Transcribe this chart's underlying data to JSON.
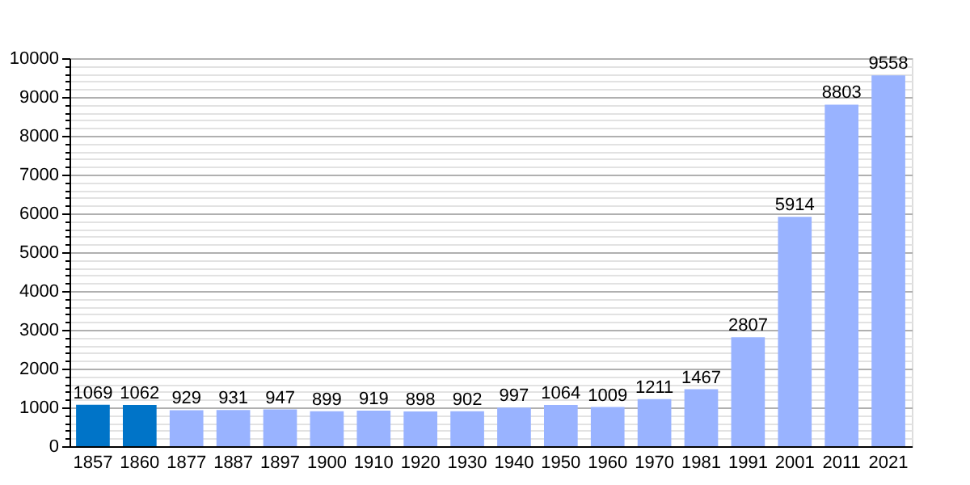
{
  "chart_data": {
    "type": "bar",
    "categories": [
      "1857",
      "1860",
      "1877",
      "1887",
      "1897",
      "1900",
      "1910",
      "1920",
      "1930",
      "1940",
      "1950",
      "1960",
      "1970",
      "1981",
      "1991",
      "2001",
      "2011",
      "2021"
    ],
    "values": [
      1069,
      1062,
      929,
      931,
      947,
      899,
      919,
      898,
      902,
      997,
      1064,
      1009,
      1211,
      1467,
      2807,
      5914,
      8803,
      9558
    ],
    "colors": [
      "#0074c8",
      "#0074c8",
      "#99b3ff",
      "#99b3ff",
      "#99b3ff",
      "#99b3ff",
      "#99b3ff",
      "#99b3ff",
      "#99b3ff",
      "#99b3ff",
      "#99b3ff",
      "#99b3ff",
      "#99b3ff",
      "#99b3ff",
      "#99b3ff",
      "#99b3ff",
      "#99b3ff",
      "#99b3ff"
    ],
    "ylim": [
      0,
      10000
    ],
    "yticks": [
      0,
      {
        "value": 200,
        "label": null
      },
      {
        "value": 400,
        "label": null
      },
      {
        "value": 600,
        "label": null
      },
      {
        "value": 800,
        "label": null
      },
      1000,
      {
        "value": 1200,
        "label": null
      },
      {
        "value": 1400,
        "label": null
      },
      {
        "value": 1600,
        "label": null
      },
      {
        "value": 1800,
        "label": null
      },
      2000,
      {
        "value": 2200,
        "label": null
      },
      {
        "value": 2400,
        "label": null
      },
      {
        "value": 2600,
        "label": null
      },
      {
        "value": 2800,
        "label": null
      },
      3000,
      {
        "value": 3200,
        "label": null
      },
      {
        "value": 3400,
        "label": null
      },
      {
        "value": 3600,
        "label": null
      },
      {
        "value": 3800,
        "label": null
      },
      4000,
      {
        "value": 4200,
        "label": null
      },
      {
        "value": 4400,
        "label": null
      },
      {
        "value": 4600,
        "label": null
      },
      {
        "value": 4800,
        "label": null
      },
      5000,
      {
        "value": 5200,
        "label": null
      },
      {
        "value": 5400,
        "label": null
      },
      {
        "value": 5600,
        "label": null
      },
      {
        "value": 5800,
        "label": null
      },
      6000,
      {
        "value": 6200,
        "label": null
      },
      {
        "value": 6400,
        "label": null
      },
      {
        "value": 6600,
        "label": null
      },
      {
        "value": 6800,
        "label": null
      },
      7000,
      {
        "value": 7200,
        "label": null
      },
      {
        "value": 7400,
        "label": null
      },
      {
        "value": 7600,
        "label": null
      },
      {
        "value": 7800,
        "label": null
      },
      8000,
      {
        "value": 8200,
        "label": null
      },
      {
        "value": 8400,
        "label": null
      },
      {
        "value": 8600,
        "label": null
      },
      {
        "value": 8800,
        "label": null
      },
      9000,
      {
        "value": 9200,
        "label": null
      },
      {
        "value": 9400,
        "label": null
      },
      {
        "value": 9600,
        "label": null
      },
      {
        "value": 9800,
        "label": null
      },
      10000
    ],
    "grid": "y",
    "data_labels": true
  }
}
